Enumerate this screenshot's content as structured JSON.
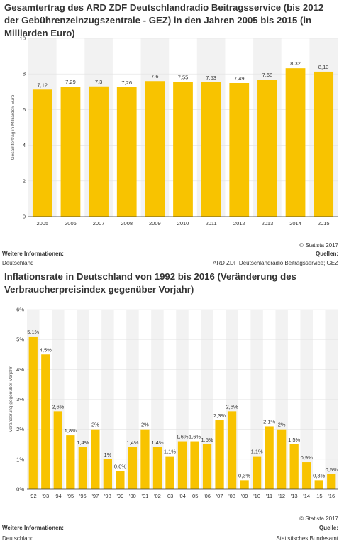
{
  "charts": [
    {
      "title": "Gesamtertrag des ARD ZDF Deutschlandradio Beitragsservice (bis 2012 der Gebührenzeinzugszentrale - GEZ) in den Jahren 2005 bis 2015 (in Milliarden Euro)",
      "copyright": "© Statista 2017",
      "info_label": "Weitere Informationen:",
      "info_value": "Deutschland",
      "source_label": "Quellen:",
      "source_value": "ARD ZDF Deutschlandradio Beitragsservice; GEZ"
    },
    {
      "title": "Inflationsrate in Deutschland von 1992 bis 2016 (Veränderung des Verbraucherpreisindex gegenüber Vorjahr)",
      "copyright": "© Statista 2017",
      "info_label": "Weitere Informationen:",
      "info_value": "Deutschland",
      "source_label": "Quelle:",
      "source_value": "Statistisches Bundesamt"
    }
  ],
  "chart_data": [
    {
      "type": "bar",
      "title": "Gesamtertrag des ARD ZDF Deutschlandradio Beitragsservice (bis 2012 der Gebührenzeinzugszentrale - GEZ) in den Jahren 2005 bis 2015 (in Milliarden Euro)",
      "categories": [
        "2005",
        "2006",
        "2007",
        "2008",
        "2009",
        "2010",
        "2011",
        "2012",
        "2013",
        "2014",
        "2015"
      ],
      "values": [
        7.12,
        7.29,
        7.3,
        7.26,
        7.6,
        7.55,
        7.53,
        7.49,
        7.68,
        8.32,
        8.13
      ],
      "data_labels": [
        "7,12",
        "7,29",
        "7,3",
        "7,26",
        "7,6",
        "7,55",
        "7,53",
        "7,49",
        "7,68",
        "8,32",
        "8,13"
      ],
      "ylabel": "Gesamtertrag in Milliarden Euro",
      "xlabel": "",
      "ylim": [
        0,
        10
      ],
      "yticks": [
        0,
        2,
        4,
        6,
        8,
        10
      ],
      "ytick_labels": [
        "0",
        "2",
        "4",
        "6",
        "8",
        "10"
      ],
      "grid": true,
      "bar_color": "#f8c300"
    },
    {
      "type": "bar",
      "title": "Inflationsrate in Deutschland von 1992 bis 2016 (Veränderung des Verbraucherpreisindex gegenüber Vorjahr)",
      "categories": [
        "'92",
        "'93",
        "'94",
        "'95",
        "'96",
        "'97",
        "'98",
        "'99",
        "'00",
        "'01",
        "'02",
        "'03",
        "'04",
        "'05",
        "'06",
        "'07",
        "'08",
        "'09",
        "'10",
        "'11",
        "'12",
        "'13",
        "'14",
        "'15",
        "'16"
      ],
      "values": [
        5.1,
        4.5,
        2.6,
        1.8,
        1.4,
        2.0,
        1.0,
        0.6,
        1.4,
        2.0,
        1.4,
        1.1,
        1.6,
        1.6,
        1.5,
        2.3,
        2.6,
        0.3,
        1.1,
        2.1,
        2.0,
        1.5,
        0.9,
        0.3,
        0.5
      ],
      "data_labels": [
        "5,1%",
        "4,5%",
        "2,6%",
        "1,8%",
        "1,4%",
        "2%",
        "1%",
        "0,6%",
        "1,4%",
        "2%",
        "1,4%",
        "1,1%",
        "1,6%",
        "1,6%",
        "1,5%",
        "2,3%",
        "2,6%",
        "0,3%",
        "1,1%",
        "2,1%",
        "2%",
        "1,5%",
        "0,9%",
        "0,3%",
        "0,5%"
      ],
      "ylabel": "Veränderung gegenüber Vorjahr",
      "xlabel": "",
      "ylim": [
        0,
        6
      ],
      "yticks": [
        0,
        1,
        2,
        3,
        4,
        5,
        6
      ],
      "ytick_labels": [
        "0%",
        "1%",
        "2%",
        "3%",
        "4%",
        "5%",
        "6%"
      ],
      "grid": true,
      "bar_color": "#f8c300"
    }
  ]
}
